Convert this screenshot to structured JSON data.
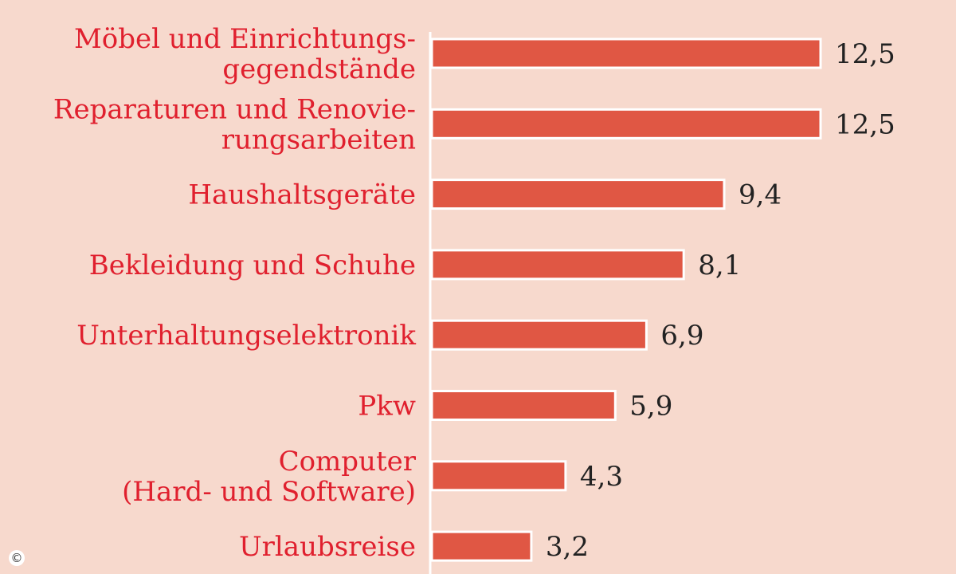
{
  "chart_data": {
    "type": "bar",
    "orientation": "horizontal",
    "categories": [
      [
        "Möbel und Einrichtungs-",
        "gegendstände"
      ],
      [
        "Reparaturen und Renovie-",
        "rungsarbeiten"
      ],
      [
        "Haushaltsgeräte"
      ],
      [
        "Bekleidung und Schuhe"
      ],
      [
        "Unterhaltungselektronik"
      ],
      [
        "Pkw"
      ],
      [
        "Computer",
        "(Hard- und Software)"
      ],
      [
        "Urlaubsreise"
      ]
    ],
    "values": [
      12.5,
      12.5,
      9.4,
      8.1,
      6.9,
      5.9,
      4.3,
      3.2
    ],
    "value_labels": [
      "12,5",
      "12,5",
      "9,4",
      "8,1",
      "6,9",
      "5,9",
      "4,3",
      "3,2"
    ],
    "xlim": [
      0,
      12.5
    ],
    "grid": false,
    "title": "",
    "xlabel": "",
    "ylabel": ""
  },
  "colors": {
    "background": "#f7d9cd",
    "bar_fill": "#e05744",
    "bar_outline": "#ffffff",
    "category_text": "#e0202e",
    "value_text": "#222222",
    "axis_line": "#ffffff"
  },
  "footer": {
    "copyright_symbol": "©"
  }
}
